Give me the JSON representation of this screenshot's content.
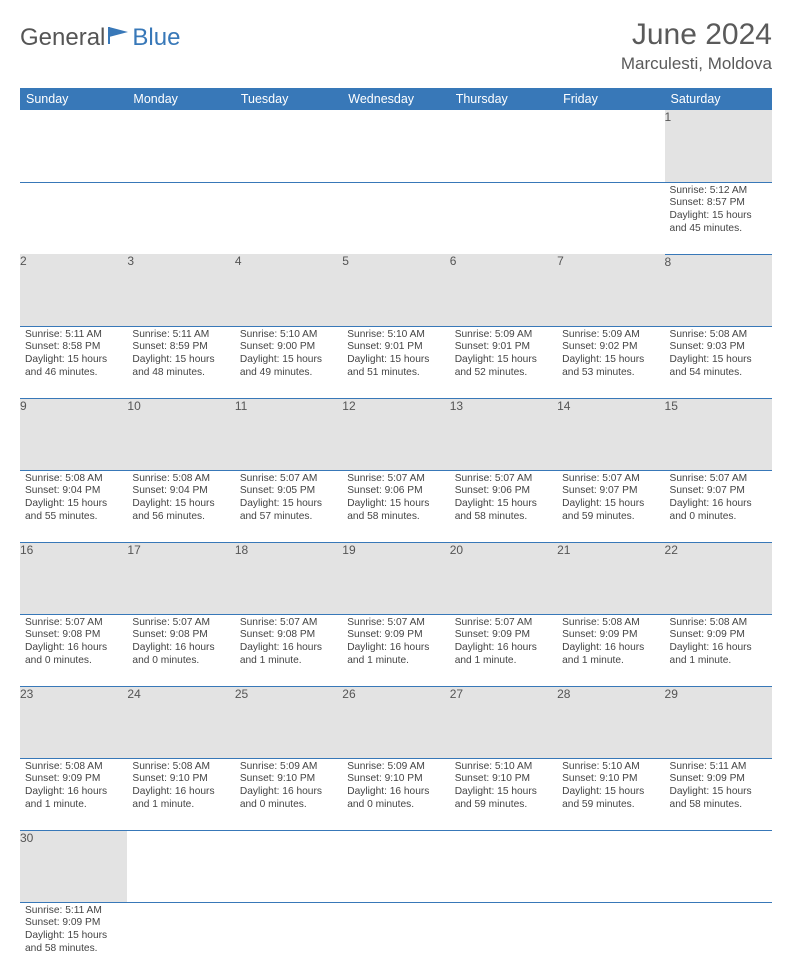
{
  "brand": {
    "part1": "General",
    "part2": "Blue"
  },
  "title": "June 2024",
  "location": "Marculesti, Moldova",
  "colors": {
    "header_bg": "#3878b8",
    "header_text": "#ffffff",
    "daynum_bg": "#e3e3e3",
    "cell_border": "#3878b8",
    "body_text": "#444444",
    "title_text": "#5a5a5a"
  },
  "daysOfWeek": [
    "Sunday",
    "Monday",
    "Tuesday",
    "Wednesday",
    "Thursday",
    "Friday",
    "Saturday"
  ],
  "weeks": [
    [
      null,
      null,
      null,
      null,
      null,
      null,
      {
        "n": "1",
        "sunrise": "5:12 AM",
        "sunset": "8:57 PM",
        "daylight": "15 hours and 45 minutes."
      }
    ],
    [
      {
        "n": "2",
        "sunrise": "5:11 AM",
        "sunset": "8:58 PM",
        "daylight": "15 hours and 46 minutes."
      },
      {
        "n": "3",
        "sunrise": "5:11 AM",
        "sunset": "8:59 PM",
        "daylight": "15 hours and 48 minutes."
      },
      {
        "n": "4",
        "sunrise": "5:10 AM",
        "sunset": "9:00 PM",
        "daylight": "15 hours and 49 minutes."
      },
      {
        "n": "5",
        "sunrise": "5:10 AM",
        "sunset": "9:01 PM",
        "daylight": "15 hours and 51 minutes."
      },
      {
        "n": "6",
        "sunrise": "5:09 AM",
        "sunset": "9:01 PM",
        "daylight": "15 hours and 52 minutes."
      },
      {
        "n": "7",
        "sunrise": "5:09 AM",
        "sunset": "9:02 PM",
        "daylight": "15 hours and 53 minutes."
      },
      {
        "n": "8",
        "sunrise": "5:08 AM",
        "sunset": "9:03 PM",
        "daylight": "15 hours and 54 minutes."
      }
    ],
    [
      {
        "n": "9",
        "sunrise": "5:08 AM",
        "sunset": "9:04 PM",
        "daylight": "15 hours and 55 minutes."
      },
      {
        "n": "10",
        "sunrise": "5:08 AM",
        "sunset": "9:04 PM",
        "daylight": "15 hours and 56 minutes."
      },
      {
        "n": "11",
        "sunrise": "5:07 AM",
        "sunset": "9:05 PM",
        "daylight": "15 hours and 57 minutes."
      },
      {
        "n": "12",
        "sunrise": "5:07 AM",
        "sunset": "9:06 PM",
        "daylight": "15 hours and 58 minutes."
      },
      {
        "n": "13",
        "sunrise": "5:07 AM",
        "sunset": "9:06 PM",
        "daylight": "15 hours and 58 minutes."
      },
      {
        "n": "14",
        "sunrise": "5:07 AM",
        "sunset": "9:07 PM",
        "daylight": "15 hours and 59 minutes."
      },
      {
        "n": "15",
        "sunrise": "5:07 AM",
        "sunset": "9:07 PM",
        "daylight": "16 hours and 0 minutes."
      }
    ],
    [
      {
        "n": "16",
        "sunrise": "5:07 AM",
        "sunset": "9:08 PM",
        "daylight": "16 hours and 0 minutes."
      },
      {
        "n": "17",
        "sunrise": "5:07 AM",
        "sunset": "9:08 PM",
        "daylight": "16 hours and 0 minutes."
      },
      {
        "n": "18",
        "sunrise": "5:07 AM",
        "sunset": "9:08 PM",
        "daylight": "16 hours and 1 minute."
      },
      {
        "n": "19",
        "sunrise": "5:07 AM",
        "sunset": "9:09 PM",
        "daylight": "16 hours and 1 minute."
      },
      {
        "n": "20",
        "sunrise": "5:07 AM",
        "sunset": "9:09 PM",
        "daylight": "16 hours and 1 minute."
      },
      {
        "n": "21",
        "sunrise": "5:08 AM",
        "sunset": "9:09 PM",
        "daylight": "16 hours and 1 minute."
      },
      {
        "n": "22",
        "sunrise": "5:08 AM",
        "sunset": "9:09 PM",
        "daylight": "16 hours and 1 minute."
      }
    ],
    [
      {
        "n": "23",
        "sunrise": "5:08 AM",
        "sunset": "9:09 PM",
        "daylight": "16 hours and 1 minute."
      },
      {
        "n": "24",
        "sunrise": "5:08 AM",
        "sunset": "9:10 PM",
        "daylight": "16 hours and 1 minute."
      },
      {
        "n": "25",
        "sunrise": "5:09 AM",
        "sunset": "9:10 PM",
        "daylight": "16 hours and 0 minutes."
      },
      {
        "n": "26",
        "sunrise": "5:09 AM",
        "sunset": "9:10 PM",
        "daylight": "16 hours and 0 minutes."
      },
      {
        "n": "27",
        "sunrise": "5:10 AM",
        "sunset": "9:10 PM",
        "daylight": "15 hours and 59 minutes."
      },
      {
        "n": "28",
        "sunrise": "5:10 AM",
        "sunset": "9:10 PM",
        "daylight": "15 hours and 59 minutes."
      },
      {
        "n": "29",
        "sunrise": "5:11 AM",
        "sunset": "9:09 PM",
        "daylight": "15 hours and 58 minutes."
      }
    ],
    [
      {
        "n": "30",
        "sunrise": "5:11 AM",
        "sunset": "9:09 PM",
        "daylight": "15 hours and 58 minutes."
      },
      null,
      null,
      null,
      null,
      null,
      null
    ]
  ],
  "labels": {
    "sunrise": "Sunrise:",
    "sunset": "Sunset:",
    "daylight": "Daylight:"
  }
}
